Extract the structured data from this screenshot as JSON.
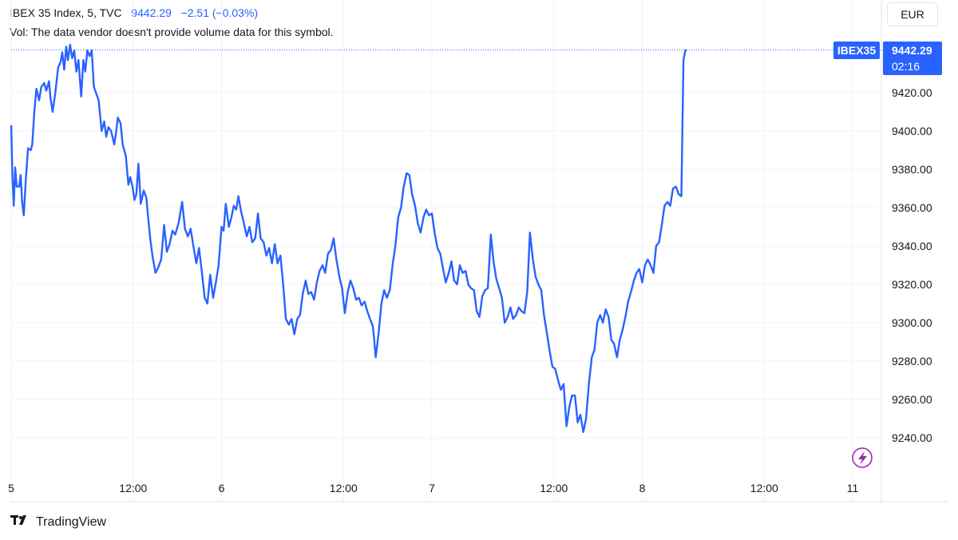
{
  "header": {
    "symbol": "IBEX 35 Index, 5, TVC",
    "last_price": "9442.29",
    "change": "−2.51 (−0.03%)",
    "volume_note": "Vol: The data vendor doesn't provide volume data for this symbol."
  },
  "currency_button": "EUR",
  "price_tag": {
    "symbol": "IBEX35",
    "price": "9442.29",
    "countdown": "02:16"
  },
  "brand": "TradingView",
  "colors": {
    "line": "#2962ff",
    "grid": "#f0f3fa",
    "tag": "#2962ff"
  },
  "icons": {
    "alert": "lightning-icon",
    "logo": "tradingview-logo-icon"
  },
  "chart_data": {
    "type": "line",
    "title": "IBEX 35 Index",
    "xlabel": "",
    "ylabel": "",
    "ylim": [
      9226,
      9450
    ],
    "grid": true,
    "y_ticks": [
      "9240.00",
      "9260.00",
      "9280.00",
      "9300.00",
      "9320.00",
      "9340.00",
      "9360.00",
      "9380.00",
      "9400.00",
      "9420.00"
    ],
    "x_ticks": [
      {
        "label": "5",
        "t": 0
      },
      {
        "label": "12:00",
        "t": 0.58
      },
      {
        "label": "6",
        "t": 1.0
      },
      {
        "label": "12:00",
        "t": 1.58
      },
      {
        "label": "7",
        "t": 2.0
      },
      {
        "label": "12:00",
        "t": 2.58
      },
      {
        "label": "8",
        "t": 3.0
      },
      {
        "label": "12:00",
        "t": 3.58
      },
      {
        "label": "11",
        "t": 4.0
      }
    ],
    "last_value": 9442.29,
    "series": [
      {
        "values": [
          [
            0.0,
            9403
          ],
          [
            0.006,
            9376
          ],
          [
            0.012,
            9361
          ],
          [
            0.019,
            9381
          ],
          [
            0.026,
            9371
          ],
          [
            0.038,
            9371
          ],
          [
            0.045,
            9377
          ],
          [
            0.052,
            9363
          ],
          [
            0.06,
            9356
          ],
          [
            0.07,
            9375
          ],
          [
            0.08,
            9391
          ],
          [
            0.093,
            9390
          ],
          [
            0.1,
            9393
          ],
          [
            0.11,
            9410
          ],
          [
            0.12,
            9422
          ],
          [
            0.133,
            9416
          ],
          [
            0.143,
            9423
          ],
          [
            0.157,
            9425
          ],
          [
            0.167,
            9421
          ],
          [
            0.18,
            9426
          ],
          [
            0.187,
            9417
          ],
          [
            0.197,
            9410
          ],
          [
            0.21,
            9420
          ],
          [
            0.223,
            9433
          ],
          [
            0.235,
            9436
          ],
          [
            0.243,
            9441
          ],
          [
            0.252,
            9432
          ],
          [
            0.262,
            9444
          ],
          [
            0.27,
            9437
          ],
          [
            0.28,
            9445
          ],
          [
            0.29,
            9438
          ],
          [
            0.3,
            9442
          ],
          [
            0.31,
            9431
          ],
          [
            0.32,
            9437
          ],
          [
            0.333,
            9418
          ],
          [
            0.343,
            9437
          ],
          [
            0.352,
            9431
          ],
          [
            0.362,
            9442
          ],
          [
            0.373,
            9439
          ],
          [
            0.383,
            9442
          ],
          [
            0.393,
            9423
          ],
          [
            0.403,
            9420
          ],
          [
            0.416,
            9416
          ],
          [
            0.43,
            9400
          ],
          [
            0.442,
            9405
          ],
          [
            0.452,
            9397
          ],
          [
            0.462,
            9402
          ],
          [
            0.475,
            9400
          ],
          [
            0.49,
            9393
          ],
          [
            0.497,
            9398
          ],
          [
            0.507,
            9407
          ],
          [
            0.52,
            9404
          ],
          [
            0.53,
            9393
          ],
          [
            0.545,
            9387
          ],
          [
            0.557,
            9372
          ],
          [
            0.566,
            9376
          ],
          [
            0.577,
            9371
          ],
          [
            0.586,
            9364
          ],
          [
            0.595,
            9367
          ],
          [
            0.605,
            9383
          ],
          [
            0.616,
            9362
          ],
          [
            0.63,
            9369
          ],
          [
            0.643,
            9365
          ],
          [
            0.65,
            9356
          ],
          [
            0.662,
            9343
          ],
          [
            0.673,
            9334
          ],
          [
            0.686,
            9326
          ],
          [
            0.7,
            9329
          ],
          [
            0.713,
            9333
          ],
          [
            0.727,
            9351
          ],
          [
            0.74,
            9337
          ],
          [
            0.753,
            9341
          ],
          [
            0.767,
            9348
          ],
          [
            0.78,
            9346
          ],
          [
            0.796,
            9352
          ],
          [
            0.813,
            9363
          ],
          [
            0.826,
            9349
          ],
          [
            0.84,
            9345
          ],
          [
            0.853,
            9349
          ],
          [
            0.866,
            9340
          ],
          [
            0.88,
            9331
          ],
          [
            0.893,
            9339
          ],
          [
            0.906,
            9327
          ],
          [
            0.92,
            9313
          ],
          [
            0.933,
            9310
          ],
          [
            0.946,
            9325
          ],
          [
            0.96,
            9313
          ],
          [
            0.973,
            9321
          ],
          [
            0.986,
            9330
          ],
          [
            1.0,
            9350
          ],
          [
            1.01,
            9348
          ],
          [
            1.02,
            9362
          ],
          [
            1.035,
            9350
          ],
          [
            1.047,
            9355
          ],
          [
            1.058,
            9361
          ],
          [
            1.07,
            9359
          ],
          [
            1.08,
            9366
          ],
          [
            1.093,
            9358
          ],
          [
            1.106,
            9352
          ],
          [
            1.12,
            9345
          ],
          [
            1.133,
            9350
          ],
          [
            1.146,
            9342
          ],
          [
            1.16,
            9344
          ],
          [
            1.173,
            9357
          ],
          [
            1.186,
            9344
          ],
          [
            1.2,
            9342
          ],
          [
            1.213,
            9335
          ],
          [
            1.226,
            9339
          ],
          [
            1.24,
            9331
          ],
          [
            1.253,
            9341
          ],
          [
            1.266,
            9331
          ],
          [
            1.28,
            9335
          ],
          [
            1.293,
            9320
          ],
          [
            1.306,
            9302
          ],
          [
            1.32,
            9299
          ],
          [
            1.333,
            9302
          ],
          [
            1.346,
            9294
          ],
          [
            1.36,
            9302
          ],
          [
            1.373,
            9304
          ],
          [
            1.386,
            9315
          ],
          [
            1.4,
            9322
          ],
          [
            1.413,
            9315
          ],
          [
            1.426,
            9316
          ],
          [
            1.44,
            9312
          ],
          [
            1.453,
            9321
          ],
          [
            1.466,
            9327
          ],
          [
            1.48,
            9330
          ],
          [
            1.493,
            9326
          ],
          [
            1.506,
            9336
          ],
          [
            1.52,
            9338
          ],
          [
            1.533,
            9344
          ],
          [
            1.546,
            9333
          ],
          [
            1.56,
            9324
          ],
          [
            1.573,
            9318
          ],
          [
            1.586,
            9305
          ],
          [
            1.6,
            9316
          ],
          [
            1.613,
            9322
          ],
          [
            1.626,
            9318
          ],
          [
            1.64,
            9312
          ],
          [
            1.653,
            9313
          ],
          [
            1.666,
            9309
          ],
          [
            1.68,
            9311
          ],
          [
            1.693,
            9306
          ],
          [
            1.706,
            9302
          ],
          [
            1.72,
            9298
          ],
          [
            1.733,
            9282
          ],
          [
            1.746,
            9294
          ],
          [
            1.76,
            9310
          ],
          [
            1.773,
            9317
          ],
          [
            1.786,
            9313
          ],
          [
            1.8,
            9317
          ],
          [
            1.813,
            9330
          ],
          [
            1.826,
            9340
          ],
          [
            1.84,
            9355
          ],
          [
            1.853,
            9360
          ],
          [
            1.866,
            9371
          ],
          [
            1.88,
            9378
          ],
          [
            1.893,
            9377
          ],
          [
            1.906,
            9367
          ],
          [
            1.92,
            9361
          ],
          [
            1.933,
            9352
          ],
          [
            1.946,
            9347
          ],
          [
            1.96,
            9355
          ],
          [
            1.973,
            9359
          ],
          [
            1.986,
            9356
          ],
          [
            2.0,
            9357
          ],
          [
            2.013,
            9347
          ],
          [
            2.026,
            9339
          ],
          [
            2.04,
            9336
          ],
          [
            2.053,
            9328
          ],
          [
            2.066,
            9321
          ],
          [
            2.08,
            9326
          ],
          [
            2.093,
            9332
          ],
          [
            2.106,
            9322
          ],
          [
            2.12,
            9320
          ],
          [
            2.133,
            9330
          ],
          [
            2.146,
            9326
          ],
          [
            2.16,
            9327
          ],
          [
            2.173,
            9320
          ],
          [
            2.186,
            9318
          ],
          [
            2.2,
            9317
          ],
          [
            2.213,
            9306
          ],
          [
            2.226,
            9303
          ],
          [
            2.24,
            9314
          ],
          [
            2.253,
            9317
          ],
          [
            2.266,
            9318
          ],
          [
            2.28,
            9346
          ],
          [
            2.293,
            9332
          ],
          [
            2.306,
            9323
          ],
          [
            2.32,
            9318
          ],
          [
            2.333,
            9313
          ],
          [
            2.346,
            9300
          ],
          [
            2.36,
            9303
          ],
          [
            2.373,
            9308
          ],
          [
            2.386,
            9302
          ],
          [
            2.4,
            9304
          ],
          [
            2.413,
            9308
          ],
          [
            2.426,
            9306
          ],
          [
            2.44,
            9305
          ],
          [
            2.453,
            9316
          ],
          [
            2.466,
            9347
          ],
          [
            2.48,
            9333
          ],
          [
            2.493,
            9324
          ],
          [
            2.506,
            9320
          ],
          [
            2.52,
            9317
          ],
          [
            2.533,
            9304
          ],
          [
            2.546,
            9295
          ],
          [
            2.56,
            9285
          ],
          [
            2.573,
            9277
          ],
          [
            2.586,
            9276
          ],
          [
            2.6,
            9270
          ],
          [
            2.613,
            9265
          ],
          [
            2.626,
            9268
          ],
          [
            2.64,
            9246
          ],
          [
            2.653,
            9256
          ],
          [
            2.666,
            9262
          ],
          [
            2.68,
            9262
          ],
          [
            2.693,
            9248
          ],
          [
            2.706,
            9252
          ],
          [
            2.72,
            9243
          ],
          [
            2.733,
            9250
          ],
          [
            2.746,
            9268
          ],
          [
            2.76,
            9282
          ],
          [
            2.773,
            9286
          ],
          [
            2.786,
            9300
          ],
          [
            2.8,
            9304
          ],
          [
            2.813,
            9300
          ],
          [
            2.826,
            9307
          ],
          [
            2.84,
            9303
          ],
          [
            2.853,
            9291
          ],
          [
            2.866,
            9289
          ],
          [
            2.88,
            9282
          ],
          [
            2.893,
            9291
          ],
          [
            2.906,
            9296
          ],
          [
            2.92,
            9303
          ],
          [
            2.933,
            9311
          ],
          [
            2.946,
            9316
          ],
          [
            2.96,
            9322
          ],
          [
            2.973,
            9326
          ],
          [
            2.986,
            9328
          ],
          [
            3.0,
            9321
          ],
          [
            3.013,
            9330
          ],
          [
            3.026,
            9333
          ],
          [
            3.04,
            9330
          ],
          [
            3.053,
            9326
          ],
          [
            3.066,
            9340
          ],
          [
            3.08,
            9342
          ],
          [
            3.093,
            9351
          ],
          [
            3.106,
            9361
          ],
          [
            3.12,
            9363
          ],
          [
            3.133,
            9361
          ],
          [
            3.146,
            9370
          ],
          [
            3.16,
            9371
          ],
          [
            3.173,
            9367
          ],
          [
            3.186,
            9366
          ],
          [
            3.196,
            9437
          ],
          [
            3.205,
            9442
          ],
          [
            3.21,
            9442.29
          ]
        ]
      }
    ]
  }
}
